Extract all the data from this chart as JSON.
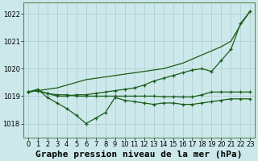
{
  "background_color": "#cce8ea",
  "grid_color": "#aacccc",
  "line_color": "#1a5c1a",
  "title": "Graphe pression niveau de la mer (hPa)",
  "xlim": [
    -0.5,
    23.5
  ],
  "ylim": [
    1017.5,
    1022.4
  ],
  "yticks": [
    1018,
    1019,
    1020,
    1021,
    1022
  ],
  "xticks": [
    0,
    1,
    2,
    3,
    4,
    5,
    6,
    7,
    8,
    9,
    10,
    11,
    12,
    13,
    14,
    15,
    16,
    17,
    18,
    19,
    20,
    21,
    22,
    23
  ],
  "hours": [
    0,
    1,
    2,
    3,
    4,
    5,
    6,
    7,
    8,
    9,
    10,
    11,
    12,
    13,
    14,
    15,
    16,
    17,
    18,
    19,
    20,
    21,
    22,
    23
  ],
  "series_smooth": [
    1019.15,
    1019.2,
    1019.25,
    1019.3,
    1019.4,
    1019.5,
    1019.6,
    1019.65,
    1019.7,
    1019.75,
    1019.8,
    1019.85,
    1019.9,
    1019.95,
    1020.0,
    1020.1,
    1020.2,
    1020.35,
    1020.5,
    1020.65,
    1020.8,
    1021.0,
    1021.6,
    1022.1
  ],
  "series_steep": [
    1019.15,
    1019.2,
    1019.1,
    1019.0,
    1019.0,
    1019.05,
    1019.05,
    1019.1,
    1019.15,
    1019.2,
    1019.25,
    1019.3,
    1019.4,
    1019.55,
    1019.65,
    1019.75,
    1019.85,
    1019.95,
    1020.0,
    1019.9,
    1020.3,
    1020.7,
    1021.65,
    1022.1
  ],
  "series_flat": [
    1019.15,
    1019.2,
    1019.1,
    1019.05,
    1019.05,
    1019.0,
    1019.0,
    1019.0,
    1019.0,
    1019.0,
    1019.0,
    1019.0,
    1019.0,
    1019.0,
    1018.98,
    1018.98,
    1018.97,
    1018.97,
    1019.05,
    1019.15,
    1019.15,
    1019.15,
    1019.15,
    1019.15
  ],
  "series_dip": [
    1019.15,
    1019.25,
    1018.95,
    1018.75,
    1018.55,
    1018.3,
    1018.0,
    1018.2,
    1018.4,
    1018.95,
    1018.85,
    1018.8,
    1018.75,
    1018.7,
    1018.75,
    1018.75,
    1018.7,
    1018.7,
    1018.75,
    1018.8,
    1018.85,
    1018.9,
    1018.9,
    1018.9
  ],
  "title_fontsize": 8,
  "tick_fontsize": 6
}
